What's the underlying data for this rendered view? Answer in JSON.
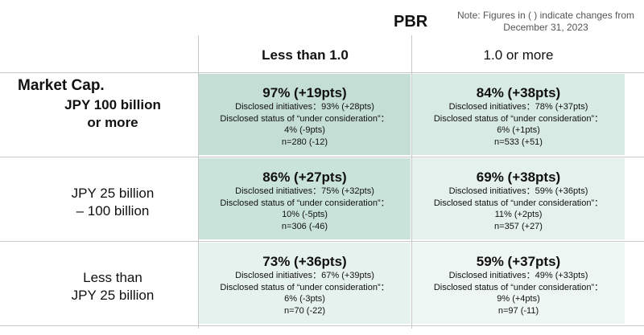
{
  "header": {
    "title": "PBR",
    "note": [
      "Note: Figures in ( ) indicate changes from",
      "December 31, 2023"
    ],
    "row_header": "Market Cap."
  },
  "columns": [
    {
      "label": "Less than 1.0",
      "bold": true
    },
    {
      "label": "1.0 or more",
      "bold": false
    }
  ],
  "rows": [
    {
      "label": [
        "JPY 100 billion",
        "or more"
      ],
      "bold": true,
      "cells": [
        {
          "headline": "97% (+19pts)",
          "lines": [
            "Disclosed initiatives：93% (+28pts)",
            "Disclosed status of “under consideration”：",
            "4% (-9pts)",
            "n=280 (-12)"
          ],
          "color": "#c4ded5"
        },
        {
          "headline": "84% (+38pts)",
          "lines": [
            "Disclosed initiatives：78% (+37pts)",
            "Disclosed status of “under consideration”：",
            "6% (+1pts)",
            "n=533 (+51)"
          ],
          "color": "#d7eae3"
        }
      ]
    },
    {
      "label": [
        "JPY 25 billion",
        "– 100 billion"
      ],
      "bold": false,
      "cells": [
        {
          "headline": "86% (+27pts)",
          "lines": [
            "Disclosed initiatives：75% (+32pts)",
            "Disclosed status of “under consideration”：",
            "10% (-5pts)",
            "n=306 (-46)"
          ],
          "color": "#cae3da"
        },
        {
          "headline": "69% (+38pts)",
          "lines": [
            "Disclosed initiatives：59% (+36pts)",
            "Disclosed status of “under consideration”：",
            "11% (+2pts)",
            "n=357 (+27)"
          ],
          "color": "#e4f1ec"
        }
      ]
    },
    {
      "label": [
        "Less than",
        "JPY 25 billion"
      ],
      "bold": false,
      "cells": [
        {
          "headline": "73% (+36pts)",
          "lines": [
            "Disclosed initiatives：67% (+39pts)",
            "Disclosed status of “under consideration”：",
            "6% (-3pts)",
            "n=70 (-22)"
          ],
          "color": "#e6f2ee"
        },
        {
          "headline": "59% (+37pts)",
          "lines": [
            "Disclosed initiatives：49% (+33pts)",
            "Disclosed status of “under consideration”：",
            "9% (+4pts)",
            "n=97 (-11)"
          ],
          "color": "#eef6f3"
        }
      ]
    }
  ]
}
